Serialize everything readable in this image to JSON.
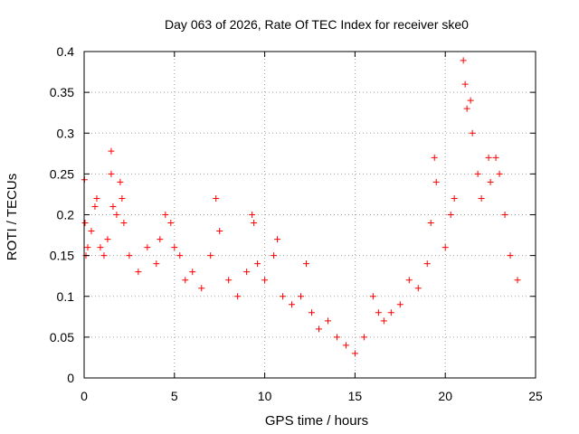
{
  "chart_data": {
    "type": "scatter",
    "title": "Day 063 of 2026, Rate Of TEC Index for receiver ske0",
    "xlabel": "GPS time / hours",
    "ylabel": "ROTI / TECUs",
    "xlim": [
      0,
      25
    ],
    "ylim": [
      0,
      0.4
    ],
    "x_ticks": [
      "0",
      "5",
      "10",
      "15",
      "20",
      "25"
    ],
    "y_ticks": [
      "0",
      "0.05",
      "0.1",
      "0.15",
      "0.2",
      "0.25",
      "0.3",
      "0.35",
      "0.4"
    ],
    "grid": true,
    "marker": "+",
    "color": "#ff0000",
    "series": [
      {
        "points": [
          [
            0.02,
            0.243
          ],
          [
            0.05,
            0.19
          ],
          [
            0.1,
            0.15
          ],
          [
            0.2,
            0.16
          ],
          [
            0.4,
            0.18
          ],
          [
            0.6,
            0.21
          ],
          [
            0.7,
            0.22
          ],
          [
            0.9,
            0.16
          ],
          [
            1.1,
            0.15
          ],
          [
            1.3,
            0.17
          ],
          [
            1.5,
            0.278
          ],
          [
            1.5,
            0.25
          ],
          [
            1.6,
            0.21
          ],
          [
            1.8,
            0.2
          ],
          [
            2.0,
            0.24
          ],
          [
            2.1,
            0.22
          ],
          [
            2.2,
            0.19
          ],
          [
            2.5,
            0.15
          ],
          [
            3.0,
            0.13
          ],
          [
            3.5,
            0.16
          ],
          [
            4.0,
            0.14
          ],
          [
            4.2,
            0.17
          ],
          [
            4.5,
            0.2
          ],
          [
            4.8,
            0.19
          ],
          [
            5.0,
            0.16
          ],
          [
            5.3,
            0.15
          ],
          [
            5.6,
            0.12
          ],
          [
            6.0,
            0.13
          ],
          [
            6.5,
            0.11
          ],
          [
            7.0,
            0.15
          ],
          [
            7.3,
            0.22
          ],
          [
            7.5,
            0.18
          ],
          [
            8.0,
            0.12
          ],
          [
            8.5,
            0.1
          ],
          [
            9.0,
            0.13
          ],
          [
            9.3,
            0.2
          ],
          [
            9.4,
            0.19
          ],
          [
            9.6,
            0.14
          ],
          [
            10.0,
            0.12
          ],
          [
            10.5,
            0.15
          ],
          [
            10.7,
            0.17
          ],
          [
            11.0,
            0.1
          ],
          [
            11.5,
            0.09
          ],
          [
            12.0,
            0.1
          ],
          [
            12.3,
            0.14
          ],
          [
            12.6,
            0.08
          ],
          [
            13.0,
            0.06
          ],
          [
            13.5,
            0.07
          ],
          [
            14.0,
            0.05
          ],
          [
            14.5,
            0.04
          ],
          [
            15.0,
            0.03
          ],
          [
            15.5,
            0.05
          ],
          [
            16.0,
            0.1
          ],
          [
            16.3,
            0.08
          ],
          [
            16.6,
            0.07
          ],
          [
            17.0,
            0.08
          ],
          [
            17.5,
            0.09
          ],
          [
            18.0,
            0.12
          ],
          [
            18.5,
            0.11
          ],
          [
            19.0,
            0.14
          ],
          [
            19.2,
            0.19
          ],
          [
            19.4,
            0.27
          ],
          [
            19.5,
            0.24
          ],
          [
            20.0,
            0.16
          ],
          [
            20.3,
            0.2
          ],
          [
            20.5,
            0.22
          ],
          [
            21.0,
            0.389
          ],
          [
            21.1,
            0.36
          ],
          [
            21.2,
            0.33
          ],
          [
            21.4,
            0.34
          ],
          [
            21.5,
            0.3
          ],
          [
            21.8,
            0.25
          ],
          [
            22.0,
            0.22
          ],
          [
            22.4,
            0.27
          ],
          [
            22.5,
            0.24
          ],
          [
            22.8,
            0.27
          ],
          [
            23.0,
            0.25
          ],
          [
            23.3,
            0.2
          ],
          [
            23.6,
            0.15
          ],
          [
            24.0,
            0.12
          ]
        ]
      }
    ]
  }
}
